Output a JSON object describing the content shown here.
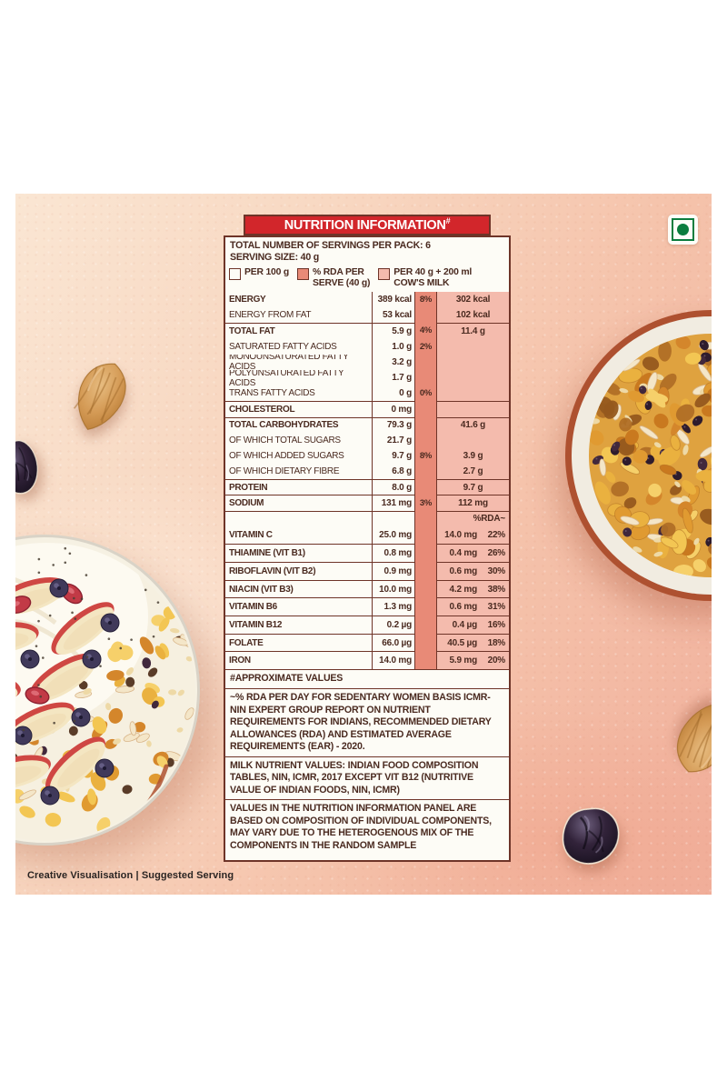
{
  "panel": {
    "title": "NUTRITION INFORMATION",
    "title_marker": "#",
    "servings_line": "TOTAL NUMBER OF SERVINGS PER PACK: 6",
    "serving_size_line": "SERVING SIZE: 40 g",
    "legend": [
      {
        "name": "per-100g",
        "swatch": "#FDFCF6",
        "lines": [
          "PER 100 g"
        ]
      },
      {
        "name": "rda-per-serve",
        "swatch": "#E88A77",
        "lines": [
          "% RDA PER",
          "SERVE (40 g)"
        ]
      },
      {
        "name": "per-40g-milk",
        "swatch": "#F4BBAD",
        "lines": [
          "PER 40 g + 200 ml",
          "COW'S MILK"
        ]
      }
    ],
    "rows": [
      {
        "label": "ENERGY",
        "per100": "389 kcal",
        "rda": "8%",
        "milk": "302 kcal",
        "type": "main"
      },
      {
        "label": "ENERGY FROM FAT",
        "per100": "53 kcal",
        "rda": "",
        "milk": "102 kcal",
        "type": "sub"
      },
      {
        "label": "TOTAL FAT",
        "per100": "5.9 g",
        "rda": "4%",
        "milk": "11.4 g",
        "type": "main"
      },
      {
        "label": "SATURATED FATTY ACIDS",
        "per100": "1.0 g",
        "rda": "2%",
        "milk": "",
        "type": "sub"
      },
      {
        "label": "MONOUNSATURATED FATTY ACIDS",
        "per100": "3.2 g",
        "rda": "",
        "milk": "",
        "type": "sub"
      },
      {
        "label": "POLYUNSATURATED FATTY ACIDS",
        "per100": "1.7 g",
        "rda": "",
        "milk": "",
        "type": "sub"
      },
      {
        "label": "TRANS FATTY ACIDS",
        "per100": "0 g",
        "rda": "0%",
        "milk": "",
        "type": "sub"
      },
      {
        "label": "CHOLESTEROL",
        "per100": "0 mg",
        "rda": "",
        "milk": "",
        "type": "main"
      },
      {
        "label": "TOTAL CARBOHYDRATES",
        "per100": "79.3 g",
        "rda": "",
        "milk": "41.6 g",
        "type": "main"
      },
      {
        "label": "OF WHICH TOTAL SUGARS",
        "per100": "21.7 g",
        "rda": "",
        "milk": "",
        "type": "sub"
      },
      {
        "label": "OF WHICH ADDED SUGARS",
        "per100": "9.7 g",
        "rda": "8%",
        "milk": "3.9 g",
        "type": "sub"
      },
      {
        "label": "OF WHICH DIETARY FIBRE",
        "per100": "6.8 g",
        "rda": "",
        "milk": "2.7 g",
        "type": "sub"
      },
      {
        "label": "PROTEIN",
        "per100": "8.0 g",
        "rda": "",
        "milk": "9.7 g",
        "type": "main"
      },
      {
        "label": "SODIUM",
        "per100": "131 mg",
        "rda": "3%",
        "milk": "112 mg",
        "type": "main"
      }
    ],
    "rda_header": "%RDA~",
    "vitamins": [
      {
        "label": "VITAMIN C",
        "per100": "25.0 mg",
        "milk": "14.0 mg",
        "pct": "22%"
      },
      {
        "label": "THIAMINE (VIT B1)",
        "per100": "0.8 mg",
        "milk": "0.4 mg",
        "pct": "26%"
      },
      {
        "label": "RIBOFLAVIN (VIT B2)",
        "per100": "0.9 mg",
        "milk": "0.6 mg",
        "pct": "30%"
      },
      {
        "label": "NIACIN (VIT B3)",
        "per100": "10.0 mg",
        "milk": "4.2 mg",
        "pct": "38%"
      },
      {
        "label": "VITAMIN B6",
        "per100": "1.3 mg",
        "milk": "0.6 mg",
        "pct": "31%"
      },
      {
        "label": "VITAMIN B12",
        "per100": "0.2 µg",
        "milk": "0.4 µg",
        "pct": "16%"
      },
      {
        "label": "FOLATE",
        "per100": "66.0 µg",
        "milk": "40.5 µg",
        "pct": "18%"
      },
      {
        "label": "IRON",
        "per100": "14.0 mg",
        "milk": "5.9 mg",
        "pct": "20%"
      }
    ],
    "footnotes": [
      "#APPROXIMATE VALUES",
      "~% RDA PER DAY FOR SEDENTARY WOMEN BASIS ICMR-NIN EXPERT GROUP REPORT ON NUTRIENT REQUIREMENTS FOR INDIANS, RECOMMENDED DIETARY ALLOWANCES (RDA) AND ESTIMATED AVERAGE REQUIREMENTS (EAR) - 2020.",
      "MILK NUTRIENT VALUES: INDIAN FOOD COMPOSITION TABLES, NIN, ICMR, 2017 EXCEPT VIT B12 (NUTRITIVE VALUE OF INDIAN FOODS, NIN, ICMR)",
      "VALUES IN THE NUTRITION INFORMATION PANEL ARE BASED ON COMPOSITION OF INDIVIDUAL COMPONENTS, MAY VARY DUE TO THE HETEROGENOUS MIX OF THE COMPONENTS IN THE RANDOM SAMPLE"
    ],
    "colors": {
      "banner_red": "#D2262B",
      "rda_column_fill": "#E88A77",
      "milk_column_fill": "#F4BBAD",
      "table_border": "#6E3428",
      "text": "#4A2A20",
      "veg_mark_green": "#0B7D3E"
    }
  },
  "credit": "Creative Visualisation  |  Suggested Serving",
  "veg_mark": "vegetarian-symbol"
}
